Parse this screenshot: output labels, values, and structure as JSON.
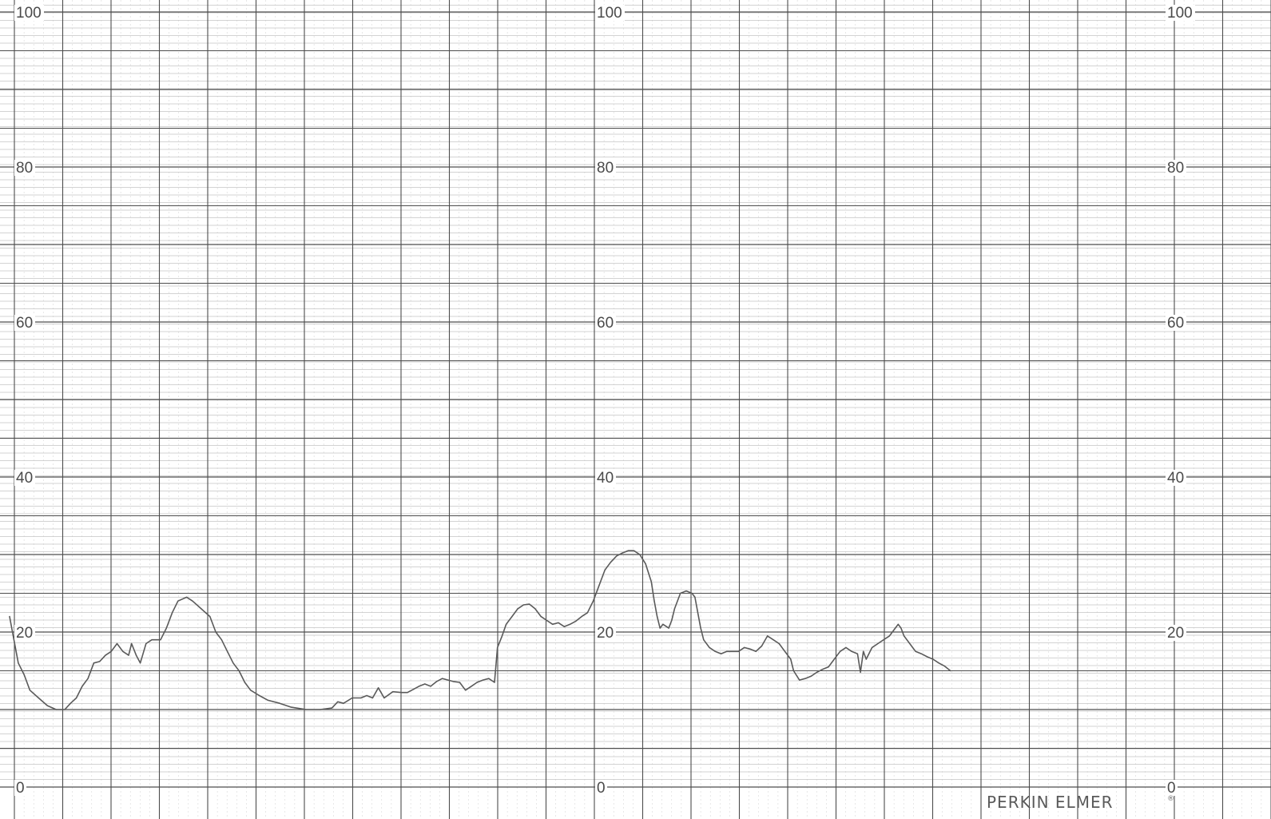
{
  "brand": {
    "name": "PERKIN ELMER",
    "mark": "®"
  },
  "colors": {
    "paper": "#ffffff",
    "major_grid": "#4d4d4d",
    "minor_grid": "#c4c4c4",
    "trace": "#5a5a5a",
    "label": "#4a4a4a"
  },
  "chart_data": {
    "type": "line",
    "title": "",
    "xlabel": "",
    "ylabel": "",
    "ylim": [
      0,
      100
    ],
    "grid": true,
    "y_tick_labels": [
      "0",
      "20",
      "40",
      "60",
      "80",
      "100"
    ],
    "y_tick_values": [
      0,
      20,
      40,
      60,
      80,
      100
    ],
    "label_columns": 3,
    "x_units_per_label_column": 100,
    "xlim": [
      0,
      220
    ],
    "series": [
      {
        "values": [
          [
            0,
            22
          ],
          [
            0.5,
            20
          ],
          [
            1.5,
            16
          ],
          [
            2.5,
            14.5
          ],
          [
            3.5,
            12.5
          ],
          [
            5,
            11.5
          ],
          [
            6.5,
            10.5
          ],
          [
            8,
            10
          ],
          [
            9.5,
            10
          ],
          [
            10.5,
            10.8
          ],
          [
            11.5,
            11.5
          ],
          [
            12.5,
            13
          ],
          [
            13.5,
            14
          ],
          [
            14.5,
            16
          ],
          [
            15.5,
            16.2
          ],
          [
            16.5,
            17
          ],
          [
            17.5,
            17.5
          ],
          [
            18.5,
            18.5
          ],
          [
            19.5,
            17.5
          ],
          [
            20.5,
            17
          ],
          [
            21,
            18.5
          ],
          [
            21.8,
            17
          ],
          [
            22.5,
            16
          ],
          [
            23.5,
            18.5
          ],
          [
            24.5,
            19
          ],
          [
            26,
            19
          ],
          [
            27,
            20.5
          ],
          [
            28,
            22.5
          ],
          [
            29,
            24
          ],
          [
            30.5,
            24.5
          ],
          [
            31.5,
            24
          ],
          [
            33,
            23
          ],
          [
            34.5,
            22
          ],
          [
            35.5,
            20
          ],
          [
            36.5,
            19
          ],
          [
            37.5,
            17.5
          ],
          [
            38.5,
            16
          ],
          [
            39.5,
            15
          ],
          [
            40.5,
            13.5
          ],
          [
            41.5,
            12.5
          ],
          [
            43,
            11.8
          ],
          [
            44.5,
            11.2
          ],
          [
            46.5,
            10.8
          ],
          [
            48.5,
            10.3
          ],
          [
            51,
            10
          ],
          [
            53.5,
            10
          ],
          [
            55.5,
            10.2
          ],
          [
            56.5,
            11
          ],
          [
            57.5,
            10.8
          ],
          [
            59,
            11.5
          ],
          [
            60.5,
            11.5
          ],
          [
            61.5,
            11.8
          ],
          [
            62.5,
            11.5
          ],
          [
            63.5,
            12.8
          ],
          [
            64.5,
            11.5
          ],
          [
            66,
            12.3
          ],
          [
            67.5,
            12.2
          ],
          [
            68.5,
            12.2
          ],
          [
            69.5,
            12.6
          ],
          [
            70.5,
            13
          ],
          [
            71.5,
            13.3
          ],
          [
            72.5,
            13
          ],
          [
            73.5,
            13.6
          ],
          [
            74.5,
            14
          ],
          [
            75.5,
            13.8
          ],
          [
            76.5,
            13.6
          ],
          [
            77.5,
            13.5
          ],
          [
            78.5,
            12.5
          ],
          [
            79.5,
            13
          ],
          [
            80.5,
            13.5
          ],
          [
            81.5,
            13.8
          ],
          [
            82.5,
            14
          ],
          [
            83.5,
            13.5
          ],
          [
            84,
            18
          ],
          [
            84.8,
            19.5
          ],
          [
            85.5,
            21
          ],
          [
            86.5,
            22
          ],
          [
            87.5,
            23
          ],
          [
            88.5,
            23.5
          ],
          [
            89.5,
            23.6
          ],
          [
            90.5,
            23
          ],
          [
            91.5,
            22
          ],
          [
            92.5,
            21.5
          ],
          [
            93.5,
            21
          ],
          [
            94.5,
            21.2
          ],
          [
            95.5,
            20.7
          ],
          [
            96.5,
            21
          ],
          [
            97.5,
            21.4
          ],
          [
            98.5,
            22
          ],
          [
            99.5,
            22.5
          ],
          [
            100.5,
            24
          ],
          [
            101.5,
            26
          ],
          [
            102.5,
            28
          ],
          [
            103.5,
            29
          ],
          [
            104.5,
            29.8
          ],
          [
            105.5,
            30.2
          ],
          [
            106.5,
            30.5
          ],
          [
            107.5,
            30.5
          ],
          [
            108.5,
            30
          ],
          [
            109.5,
            28.8
          ],
          [
            110.5,
            26.5
          ],
          [
            111,
            24
          ],
          [
            111.5,
            22
          ],
          [
            112,
            20.5
          ],
          [
            112.5,
            21
          ],
          [
            113.5,
            20.5
          ],
          [
            114,
            21.5
          ],
          [
            114.5,
            23
          ],
          [
            115.5,
            25
          ],
          [
            116.5,
            25.3
          ],
          [
            117.5,
            25
          ],
          [
            118,
            24.5
          ],
          [
            118.5,
            22.5
          ],
          [
            119,
            20.5
          ],
          [
            119.5,
            19
          ],
          [
            120.5,
            18
          ],
          [
            121.5,
            17.5
          ],
          [
            122.5,
            17.2
          ],
          [
            123.5,
            17.5
          ],
          [
            124.5,
            17.5
          ],
          [
            125.5,
            17.5
          ],
          [
            126.5,
            18
          ],
          [
            127.5,
            17.8
          ],
          [
            128.5,
            17.5
          ],
          [
            129.5,
            18.2
          ],
          [
            130.5,
            19.5
          ],
          [
            131.5,
            19
          ],
          [
            132.5,
            18.5
          ],
          [
            133.5,
            17.5
          ],
          [
            134.5,
            16.5
          ],
          [
            135,
            15
          ],
          [
            136,
            13.8
          ],
          [
            137,
            14
          ],
          [
            138,
            14.3
          ],
          [
            139,
            14.8
          ],
          [
            140,
            15.2
          ],
          [
            141,
            15.5
          ],
          [
            142,
            16.5
          ],
          [
            143,
            17.5
          ],
          [
            144,
            18
          ],
          [
            145,
            17.5
          ],
          [
            146,
            17.2
          ],
          [
            146.5,
            14.8
          ],
          [
            147,
            17.5
          ],
          [
            147.5,
            16.5
          ],
          [
            148.5,
            18
          ],
          [
            149.5,
            18.5
          ],
          [
            150.5,
            19
          ],
          [
            151.5,
            19.5
          ],
          [
            152.5,
            20.5
          ],
          [
            153,
            21
          ],
          [
            153.5,
            20.5
          ],
          [
            154,
            19.5
          ],
          [
            155,
            18.5
          ],
          [
            156,
            17.5
          ],
          [
            157,
            17.2
          ],
          [
            158,
            16.8
          ],
          [
            159,
            16.5
          ],
          [
            160,
            16
          ],
          [
            161,
            15.6
          ],
          [
            162,
            15
          ]
        ]
      }
    ]
  }
}
